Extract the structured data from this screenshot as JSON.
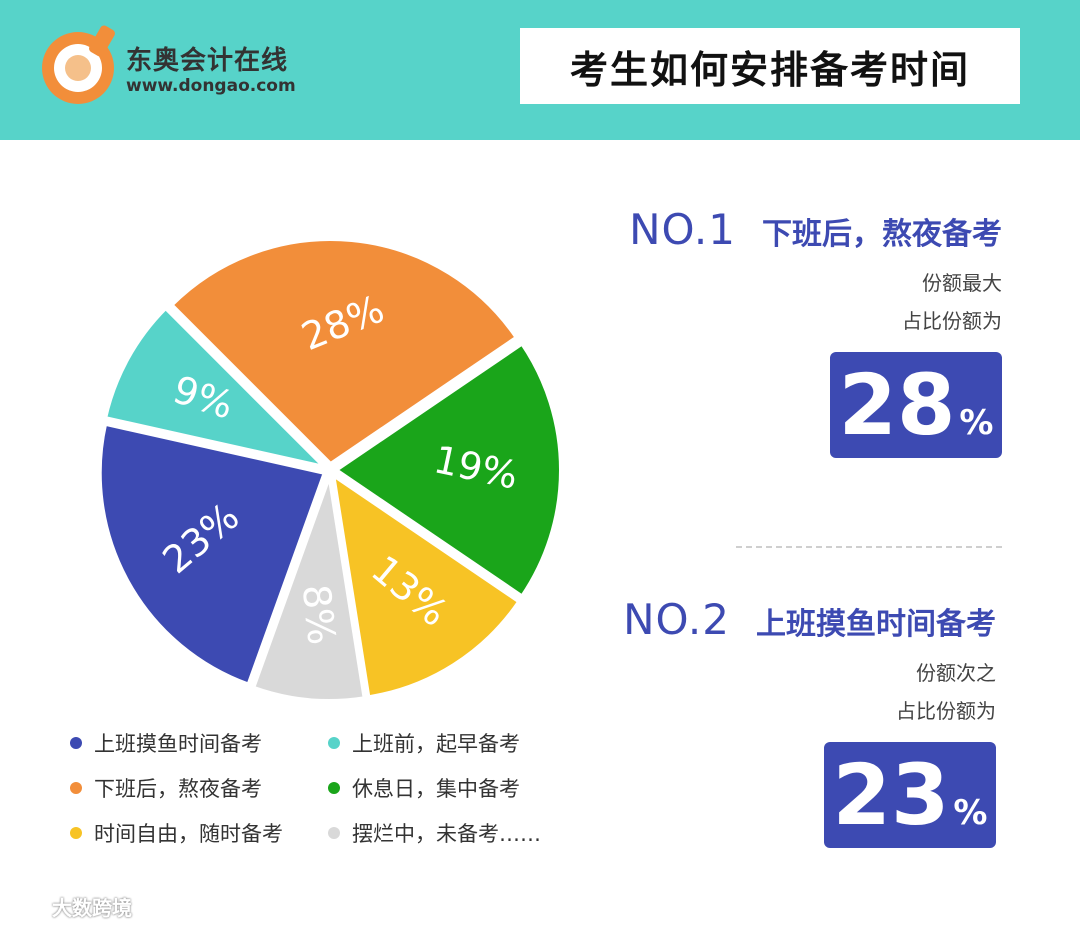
{
  "header": {
    "brand_name": "东奥会计在线",
    "brand_url": "www.dongao.com",
    "title": "考生如何安排备考时间"
  },
  "colors": {
    "header_bg": "#57d3c9",
    "accent": "#3d4ab2"
  },
  "chart_data": {
    "type": "pie",
    "title": "",
    "slices": [
      {
        "label": "上班摸鱼时间备考",
        "value": 23,
        "display": "23%",
        "color": "#3d4ab2"
      },
      {
        "label": "上班前，起早备考",
        "value": 9,
        "display": "9%",
        "color": "#57d3c9"
      },
      {
        "label": "下班后，熬夜备考",
        "value": 28,
        "display": "28%",
        "color": "#f28e3a"
      },
      {
        "label": "休息日，集中备考",
        "value": 19,
        "display": "19%",
        "color": "#1aa51a"
      },
      {
        "label": "时间自由，随时备考",
        "value": 13,
        "display": "13%",
        "color": "#f7c325"
      },
      {
        "label": "摆烂中，未备考……",
        "value": 8,
        "display": "8%",
        "color": "#d9d9d9"
      }
    ],
    "legend_position": "bottom"
  },
  "rankings": [
    {
      "no": "NO.1",
      "title": "下班后，熬夜备考",
      "sub1": "份额最大",
      "sub2": "占比份额为",
      "value": "28",
      "unit": "%"
    },
    {
      "no": "NO.2",
      "title": "上班摸鱼时间备考",
      "sub1": "份额次之",
      "sub2": "占比份额为",
      "value": "23",
      "unit": "%"
    }
  ],
  "watermark": "大数跨境"
}
